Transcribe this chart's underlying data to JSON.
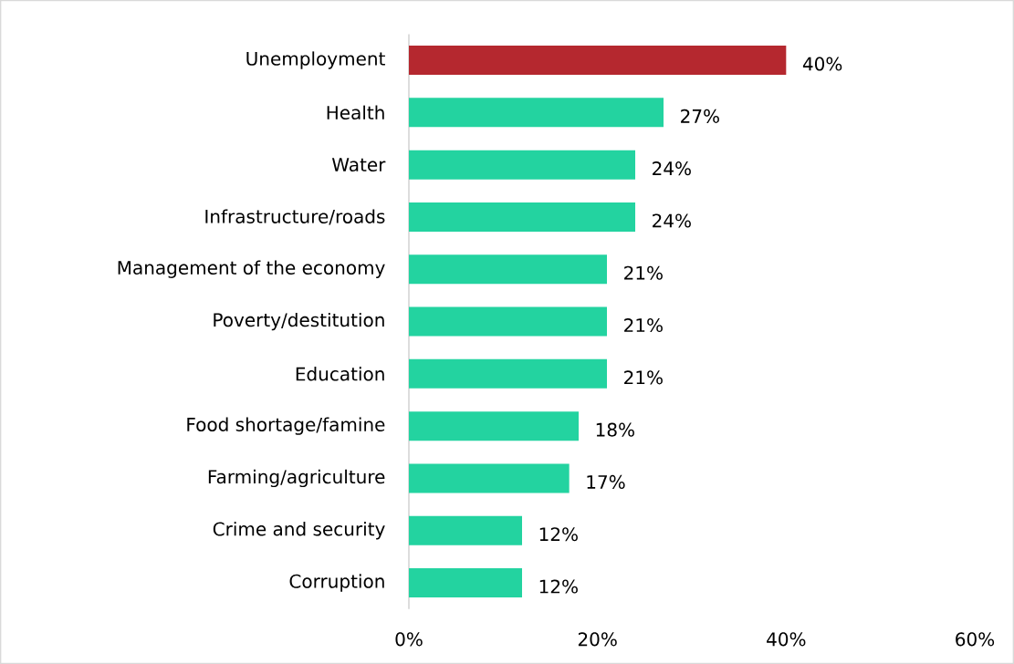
{
  "chart_data": {
    "type": "bar",
    "orientation": "horizontal",
    "categories": [
      "Unemployment",
      "Health",
      "Water",
      "Infrastructure/roads",
      "Management of the economy",
      "Poverty/destitution",
      "Education",
      "Food shortage/famine",
      "Farming/agriculture",
      "Crime and security",
      "Corruption"
    ],
    "values": [
      40,
      27,
      24,
      24,
      21,
      21,
      21,
      18,
      17,
      12,
      12
    ],
    "colors": [
      "#b5282f",
      "#23d3a0",
      "#23d3a0",
      "#23d3a0",
      "#23d3a0",
      "#23d3a0",
      "#23d3a0",
      "#23d3a0",
      "#23d3a0",
      "#23d3a0",
      "#23d3a0"
    ],
    "value_labels": [
      "40%",
      "27%",
      "24%",
      "24%",
      "21%",
      "21%",
      "21%",
      "18%",
      "17%",
      "12%",
      "12%"
    ],
    "xlim": [
      0,
      60
    ],
    "xticks": [
      {
        "value": 0,
        "label": "0%"
      },
      {
        "value": 20,
        "label": "20%"
      },
      {
        "value": 40,
        "label": "40%"
      },
      {
        "value": 60,
        "label": "60%"
      }
    ]
  }
}
